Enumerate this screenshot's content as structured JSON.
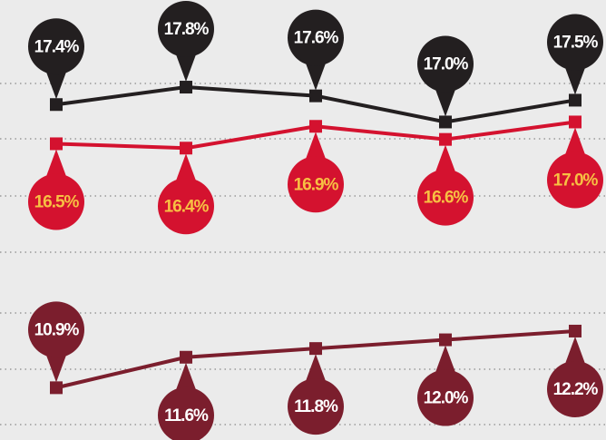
{
  "chart_data": {
    "type": "line",
    "categories": [
      null,
      null,
      null,
      null,
      null
    ],
    "ylim": [
      9.7,
      19.8
    ],
    "series": [
      {
        "color": "#231f20",
        "label_color": "#ffffff",
        "values": [
          17.4,
          17.8,
          17.6,
          17.0,
          17.5
        ],
        "value_labels": [
          "17.4%",
          "17.8%",
          "17.6%",
          "17.0%",
          "17.5%"
        ]
      },
      {
        "color": "#d4122f",
        "label_color": "#f7c043",
        "values": [
          16.5,
          16.4,
          16.9,
          16.6,
          17.0
        ],
        "value_labels": [
          "16.5%",
          "16.4%",
          "16.9%",
          "16.6%",
          "17.0%"
        ]
      },
      {
        "color": "#7b1e2d",
        "label_color": "#ffffff",
        "values": [
          10.9,
          11.6,
          11.8,
          12.0,
          12.2
        ],
        "value_labels": [
          "10.9%",
          "11.6%",
          "11.8%",
          "12.0%",
          "12.2%"
        ]
      }
    ]
  }
}
